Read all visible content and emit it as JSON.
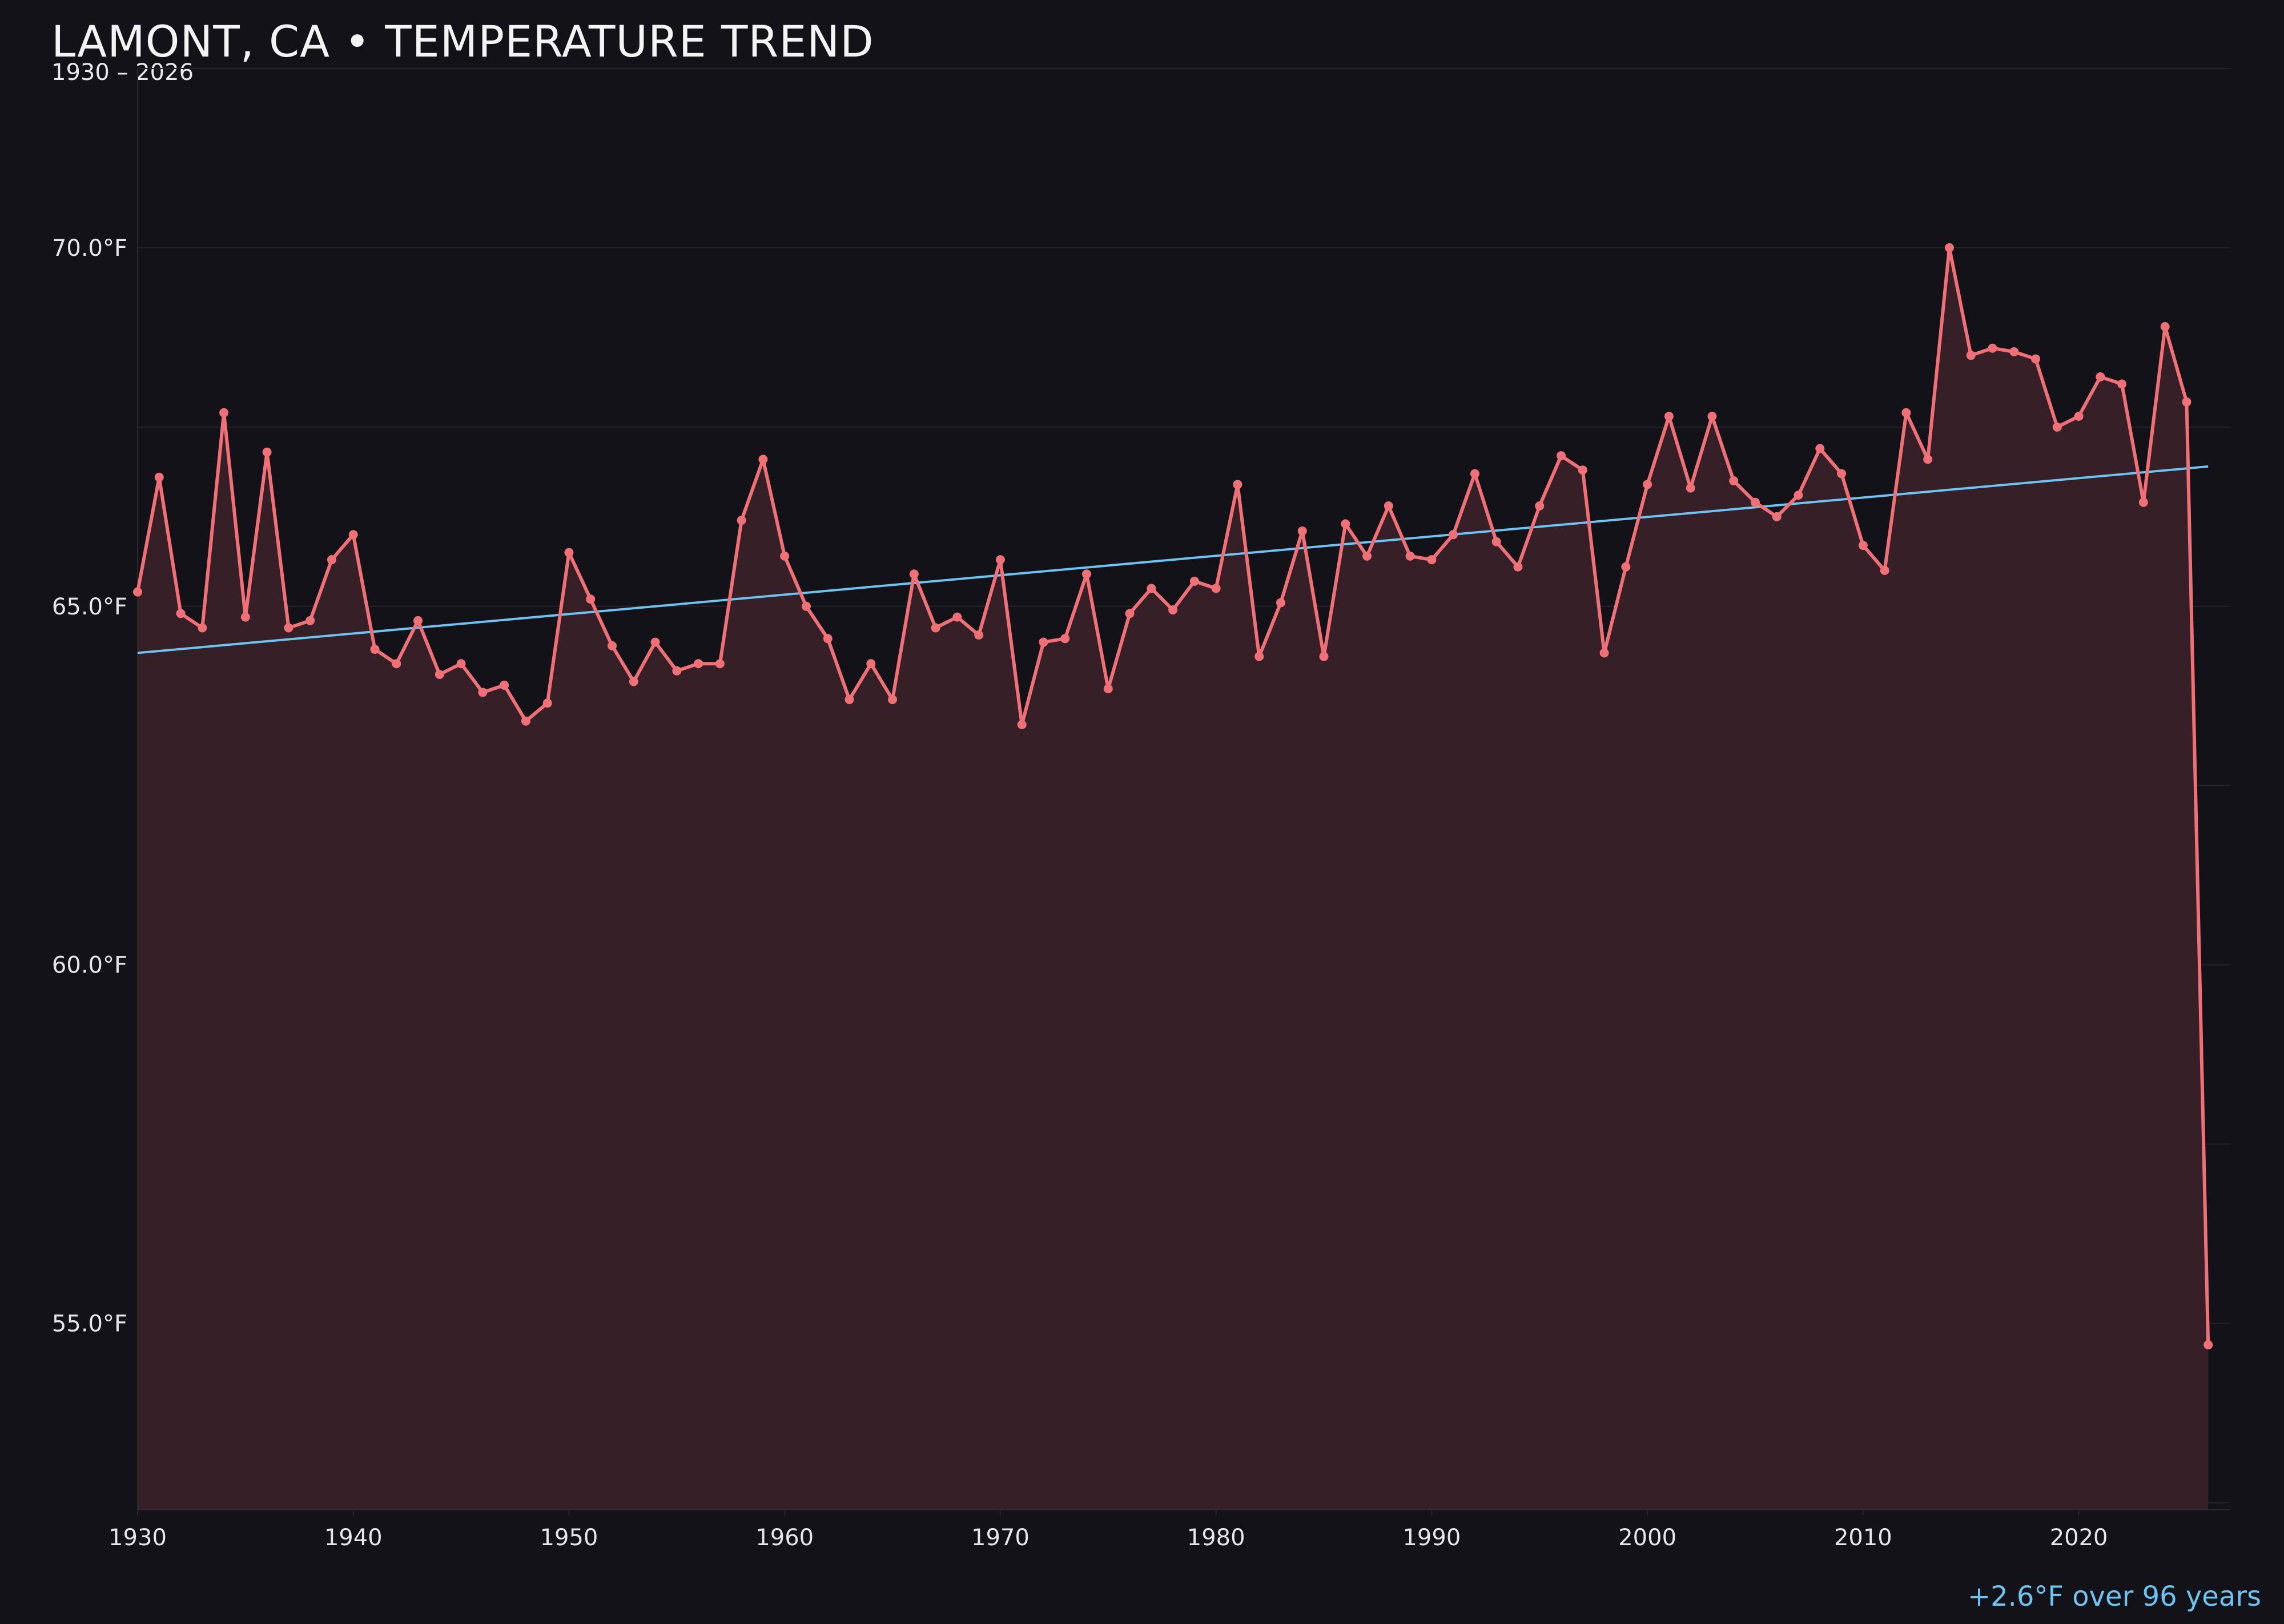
{
  "header": {
    "title": "LAMONT, CA • TEMPERATURE TREND",
    "subtitle": "1930 – 2026"
  },
  "annotation": "+2.6°F over 96 years",
  "colors": {
    "background": "#131218",
    "series_line": "#f07078",
    "series_fill": "#361f26",
    "trend_line": "#6fc3f0",
    "grid": "#27232b",
    "axis_text": "#e6e6ea"
  },
  "chart_data": {
    "type": "line",
    "title": "LAMONT, CA • TEMPERATURE TREND",
    "subtitle": "1930 – 2026",
    "xlabel": "",
    "ylabel": "",
    "xlim": [
      1930,
      2027
    ],
    "ylim": [
      52.4,
      72.5
    ],
    "x_ticks": [
      1930,
      1940,
      1950,
      1960,
      1970,
      1980,
      1990,
      2000,
      2010,
      2020
    ],
    "y_ticks": [
      55.0,
      60.0,
      65.0,
      70.0
    ],
    "y_tick_labels": [
      "55.0°F",
      "60.0°F",
      "65.0°F",
      "70.0°F"
    ],
    "grid": "horizontal",
    "area_fill": true,
    "series": [
      {
        "x": [
          1930,
          1931,
          1932,
          1933,
          1934,
          1935,
          1936,
          1937,
          1938,
          1939,
          1940,
          1941,
          1942,
          1943,
          1944,
          1945,
          1946,
          1947,
          1948,
          1949,
          1950,
          1951,
          1952,
          1953,
          1954,
          1955,
          1956,
          1957,
          1958,
          1959,
          1960,
          1961,
          1962,
          1963,
          1964,
          1965,
          1966,
          1967,
          1968,
          1969,
          1970,
          1971,
          1972,
          1973,
          1974,
          1975,
          1976,
          1977,
          1978,
          1979,
          1980,
          1981,
          1982,
          1983,
          1984,
          1985,
          1986,
          1987,
          1988,
          1989,
          1990,
          1991,
          1992,
          1993,
          1994,
          1995,
          1996,
          1997,
          1998,
          1999,
          2000,
          2001,
          2002,
          2003,
          2004,
          2005,
          2006,
          2007,
          2008,
          2009,
          2010,
          2011,
          2012,
          2013,
          2014,
          2015,
          2016,
          2017,
          2018,
          2019,
          2020,
          2021,
          2022,
          2023,
          2024,
          2025,
          2026
        ],
        "values": [
          65.2,
          66.8,
          64.9,
          64.7,
          67.7,
          64.85,
          67.15,
          64.7,
          64.8,
          65.65,
          66.0,
          64.4,
          64.2,
          64.8,
          64.05,
          64.2,
          63.8,
          63.9,
          63.4,
          63.65,
          65.75,
          65.1,
          64.45,
          63.95,
          64.5,
          64.1,
          64.2,
          64.2,
          66.2,
          67.05,
          65.7,
          65.0,
          64.55,
          63.7,
          64.2,
          63.7,
          65.45,
          64.7,
          64.85,
          64.6,
          65.65,
          63.35,
          64.5,
          64.55,
          65.45,
          63.85,
          64.9,
          65.25,
          64.95,
          65.35,
          65.25,
          66.7,
          64.3,
          65.05,
          66.05,
          64.3,
          66.15,
          65.7,
          66.4,
          65.7,
          65.65,
          66.0,
          66.85,
          65.9,
          65.55,
          66.4,
          67.1,
          66.9,
          64.35,
          65.55,
          66.7,
          67.65,
          66.65,
          67.65,
          66.75,
          66.45,
          66.25,
          66.55,
          67.2,
          66.85,
          65.85,
          65.5,
          67.7,
          67.05,
          70.0,
          68.5,
          68.6,
          68.55,
          68.45,
          67.5,
          67.65,
          68.2,
          68.1,
          66.45,
          68.9,
          67.85,
          54.7
        ]
      },
      {
        "type": "trend",
        "x": [
          1930,
          2026
        ],
        "values": [
          64.35,
          66.95
        ]
      }
    ]
  }
}
